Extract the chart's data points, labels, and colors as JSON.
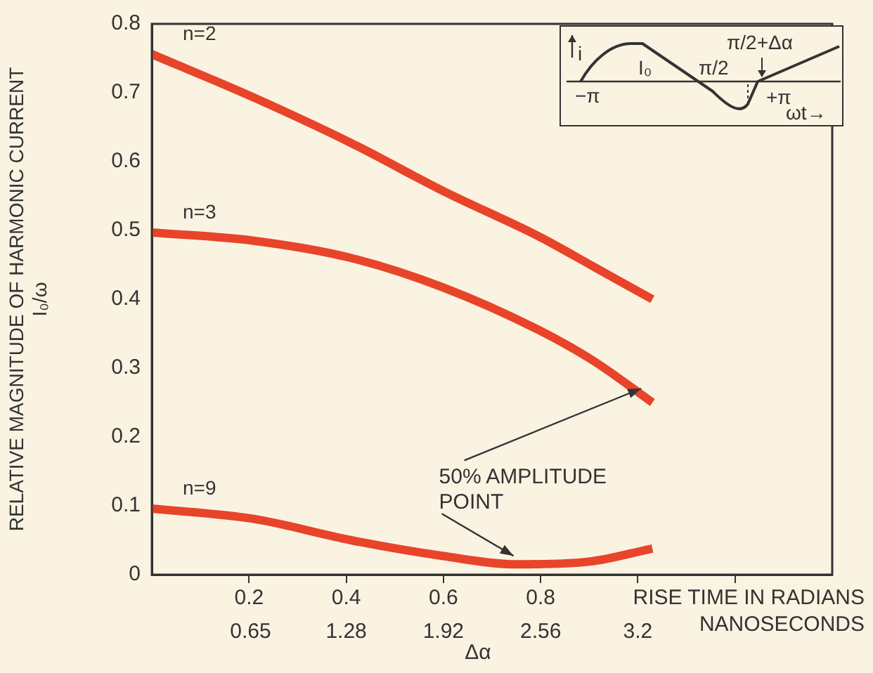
{
  "chart_data": {
    "type": "line",
    "ylabel": "RELATIVE MAGNITUDE OF HARMONIC CURRENT\nI₀/ω",
    "xlabel": "RISE TIME IN RADIANS",
    "x2label": "NANOSECONDS",
    "xlim": [
      0,
      1.4
    ],
    "xticks": [
      0.2,
      0.4,
      0.6,
      0.8,
      {
        "value": 1.0,
        "label": null
      },
      {
        "value": 1.2,
        "label": null
      }
    ],
    "x2lim": [
      0,
      4.48
    ],
    "x2ticks": [
      0.65,
      1.28,
      1.92,
      2.56,
      3.2
    ],
    "ylim": [
      0,
      0.8
    ],
    "yticks": [
      0,
      0.1,
      0.2,
      0.3,
      0.4,
      0.5,
      0.6,
      0.7,
      0.8
    ],
    "series": [
      {
        "name": "n=2",
        "color": "#e8442a",
        "x": [
          0,
          0.21,
          0.41,
          0.6,
          0.8,
          0.91,
          1.03
        ],
        "values": [
          0.756,
          0.693,
          0.627,
          0.557,
          0.49,
          0.447,
          0.4
        ]
      },
      {
        "name": "n=3",
        "color": "#e8442a",
        "x": [
          0,
          0.21,
          0.41,
          0.6,
          0.8,
          0.91,
          1.03
        ],
        "values": [
          0.497,
          0.485,
          0.46,
          0.417,
          0.354,
          0.31,
          0.25
        ]
      },
      {
        "name": "n=9",
        "color": "#e8442a",
        "x": [
          0,
          0.21,
          0.41,
          0.6,
          0.75,
          0.9,
          1.03
        ],
        "values": [
          0.096,
          0.081,
          0.05,
          0.027,
          0.015,
          0.019,
          0.038
        ]
      }
    ],
    "annotations": [
      "Δα",
      {
        "text": "50% AMPLITUDE\nPOINT",
        "x": 0.75,
        "y": 0.015
      },
      "i",
      "I₀",
      "−π",
      "π/2",
      "π/2+Δα",
      "+π",
      "ωt→"
    ],
    "grid": false,
    "legend": false
  }
}
